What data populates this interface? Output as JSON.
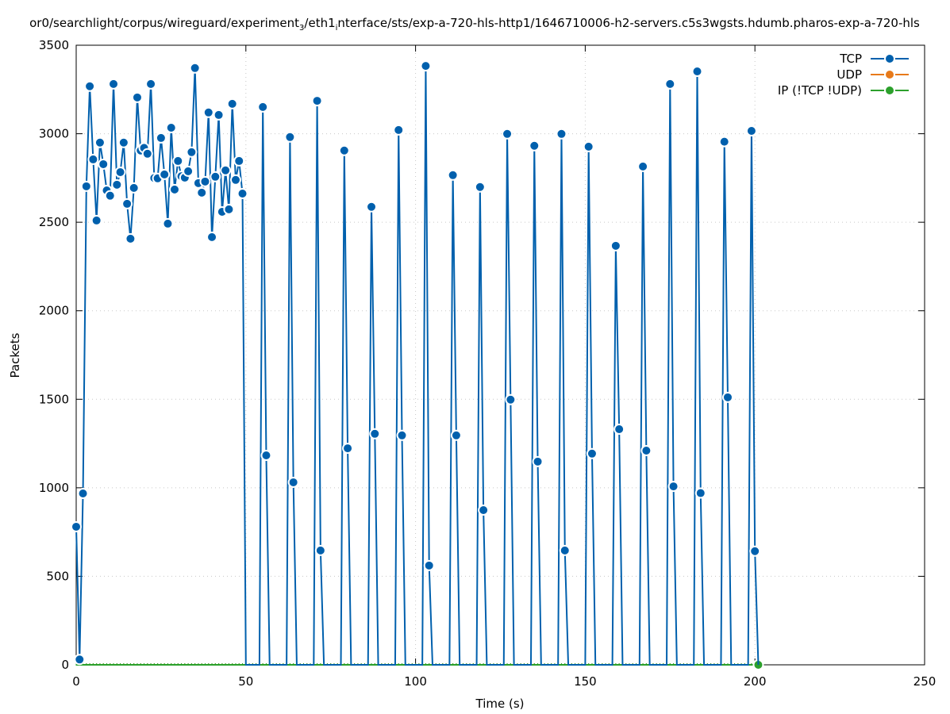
{
  "chart_data": {
    "type": "line",
    "title_parts": [
      "or0/searchlight/corpus/wireguard/experiment",
      "3",
      "/eth1",
      "i",
      "nterface/sts/exp-a-720-hls-http1/1646710006-h2-servers.c5s3wgsts.hdumb.pharos-exp-a-720-hls"
    ],
    "xlabel": "Time (s)",
    "ylabel": "Packets",
    "xlim": [
      0,
      250
    ],
    "ylim": [
      0,
      3500
    ],
    "xticks": [
      0,
      50,
      100,
      150,
      200,
      250
    ],
    "yticks": [
      0,
      500,
      1000,
      1500,
      2000,
      2500,
      3000,
      3500
    ],
    "grid": true,
    "legend_position": "top-right",
    "series": [
      {
        "name": "TCP",
        "color": "#0060ad",
        "x": [
          0,
          1,
          2,
          3,
          4,
          5,
          6,
          7,
          8,
          9,
          10,
          11,
          12,
          13,
          14,
          15,
          16,
          17,
          18,
          19,
          20,
          21,
          22,
          23,
          24,
          25,
          26,
          27,
          28,
          29,
          30,
          31,
          32,
          33,
          34,
          35,
          36,
          37,
          38,
          39,
          40,
          41,
          42,
          43,
          44,
          45,
          46,
          47,
          48,
          49,
          50,
          54,
          55,
          56,
          57,
          62,
          63,
          64,
          65,
          70,
          71,
          72,
          73,
          78,
          79,
          80,
          81,
          86,
          87,
          88,
          89,
          94,
          95,
          96,
          97,
          102,
          103,
          104,
          105,
          110,
          111,
          112,
          113,
          118,
          119,
          120,
          121,
          126,
          127,
          128,
          129,
          134,
          135,
          136,
          137,
          142,
          143,
          144,
          145,
          150,
          151,
          152,
          153,
          158,
          159,
          160,
          161,
          166,
          167,
          168,
          169,
          174,
          175,
          176,
          177,
          182,
          183,
          184,
          185,
          190,
          191,
          192,
          193,
          198,
          199,
          200,
          201
        ],
        "y": [
          780,
          30,
          968,
          2703,
          3268,
          2855,
          2510,
          2950,
          2828,
          2680,
          2650,
          3281,
          2712,
          2783,
          2950,
          2604,
          2407,
          2694,
          3205,
          2905,
          2920,
          2887,
          3281,
          2750,
          2748,
          2976,
          2770,
          2492,
          3034,
          2685,
          2846,
          2760,
          2752,
          2788,
          2896,
          3371,
          2721,
          2667,
          2730,
          3120,
          2416,
          2757,
          3106,
          2559,
          2793,
          2573,
          3169,
          2739,
          2846,
          2662,
          0,
          0,
          3151,
          1183,
          0,
          0,
          2981,
          1031,
          0,
          0,
          3186,
          646,
          0,
          0,
          2905,
          1223,
          0,
          0,
          2587,
          1305,
          0,
          0,
          3021,
          1296,
          0,
          0,
          3383,
          561,
          0,
          0,
          2766,
          1296,
          0,
          0,
          2699,
          874,
          0,
          0,
          2999,
          1498,
          0,
          0,
          2932,
          1148,
          0,
          0,
          2999,
          646,
          0,
          0,
          2927,
          1193,
          0,
          0,
          2367,
          1331,
          0,
          0,
          2815,
          1210,
          0,
          0,
          3281,
          1008,
          0,
          0,
          3352,
          970,
          0,
          0,
          2955,
          1511,
          0,
          0,
          3016,
          642,
          0
        ]
      },
      {
        "name": "UDP",
        "color": "#e77a1a",
        "x": [
          0,
          201
        ],
        "y": [
          0,
          0
        ]
      },
      {
        "name": "IP (!TCP  !UDP)",
        "color": "#2ca02c",
        "x": [
          0,
          201
        ],
        "y": [
          0,
          0
        ],
        "points": [
          [
            201,
            0
          ]
        ]
      }
    ]
  }
}
